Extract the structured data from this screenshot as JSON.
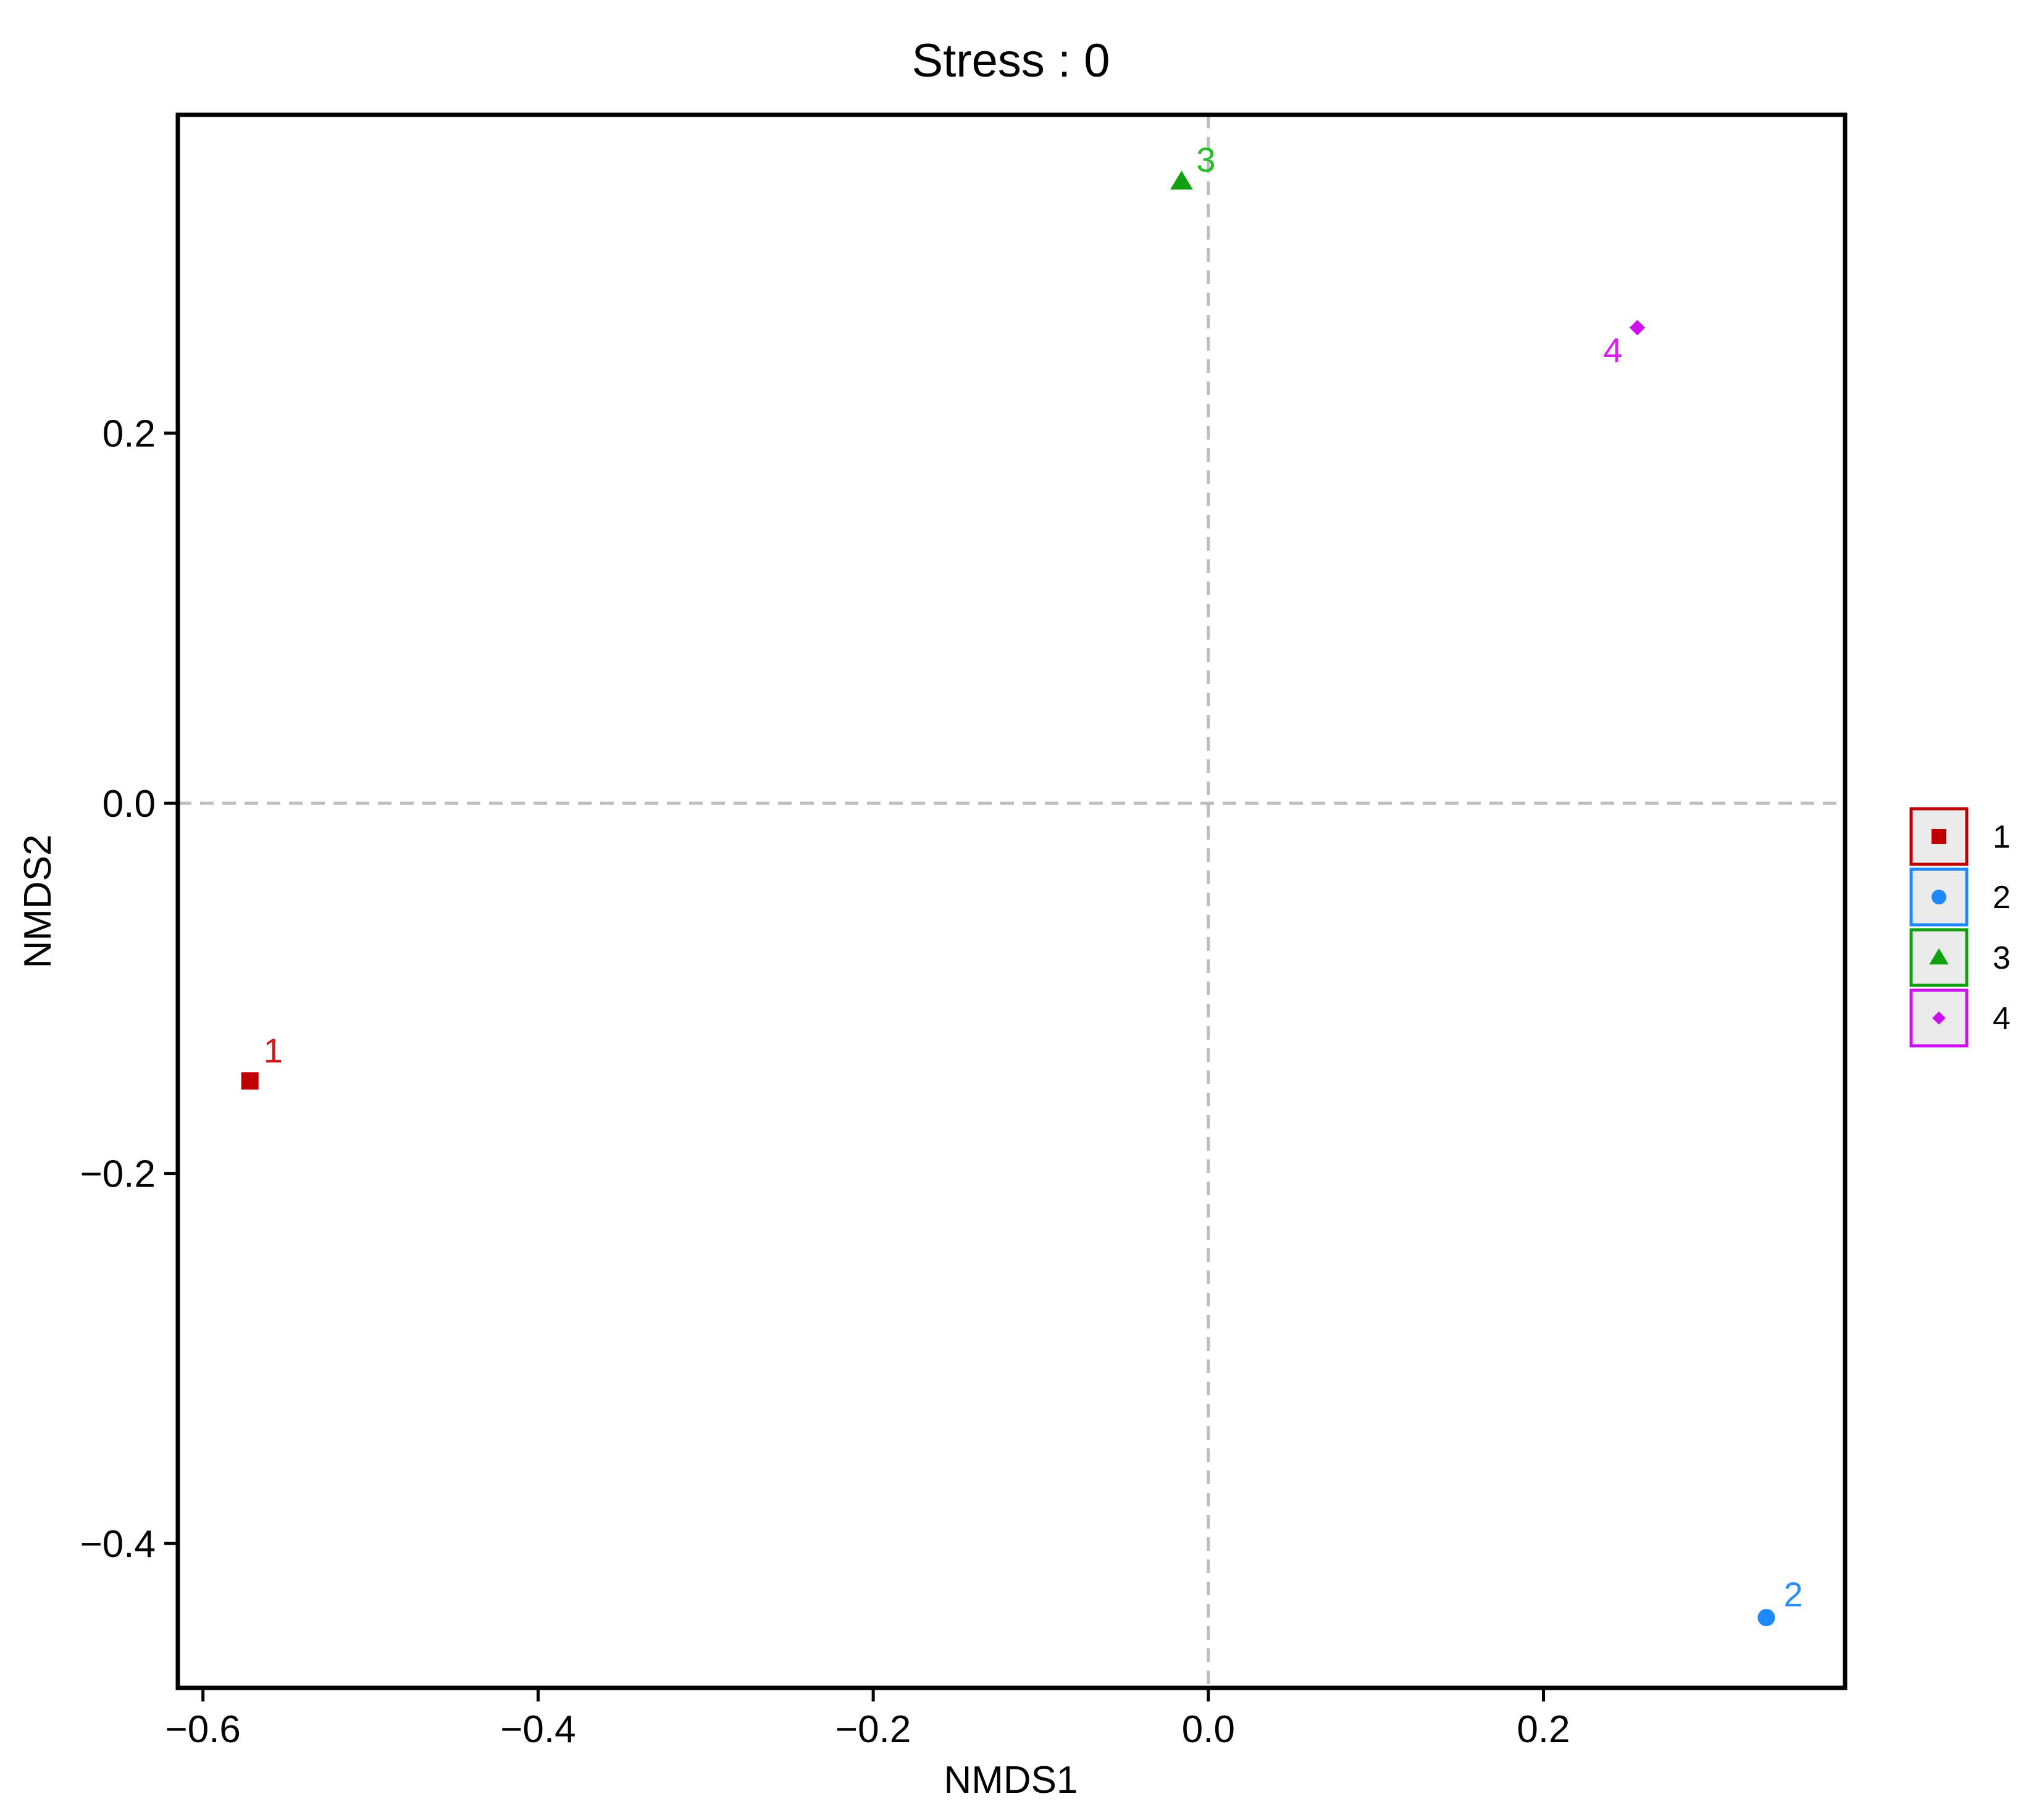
{
  "chart_data": {
    "type": "scatter",
    "title": "Stress : 0",
    "xlabel": "NMDS1",
    "ylabel": "NMDS2",
    "xlim": [
      -0.615,
      0.38
    ],
    "ylim": [
      -0.478,
      0.372
    ],
    "x_ticks": [
      -0.6,
      -0.4,
      -0.2,
      0.0,
      0.2
    ],
    "x_tick_labels": [
      "−0.6",
      "−0.4",
      "−0.2",
      "0.0",
      "0.2"
    ],
    "y_ticks": [
      -0.4,
      -0.2,
      0.0,
      0.2
    ],
    "y_tick_labels": [
      "−0.4",
      "−0.2",
      "0.0",
      "0.2"
    ],
    "grid": false,
    "reference_lines": {
      "x": 0.0,
      "y": 0.0,
      "style": "dashed",
      "color": "#bdbdbd"
    },
    "legend_position": "right",
    "series": [
      {
        "name": "1",
        "shape": "square",
        "color": "#c00000",
        "x": -0.572,
        "y": -0.15,
        "label": "1"
      },
      {
        "name": "2",
        "shape": "circle",
        "color": "#1e88ff",
        "x": 0.333,
        "y": -0.44,
        "label": "2"
      },
      {
        "name": "3",
        "shape": "triangle",
        "color": "#10a010",
        "x": -0.016,
        "y": 0.336,
        "label": "3"
      },
      {
        "name": "4",
        "shape": "diamond",
        "color": "#cc11ee",
        "x": 0.256,
        "y": 0.257,
        "label": "4"
      }
    ],
    "point_label_colors": {
      "1": "#d01818",
      "2": "#2a8cff",
      "3": "#22c022",
      "4": "#d820f0"
    }
  }
}
